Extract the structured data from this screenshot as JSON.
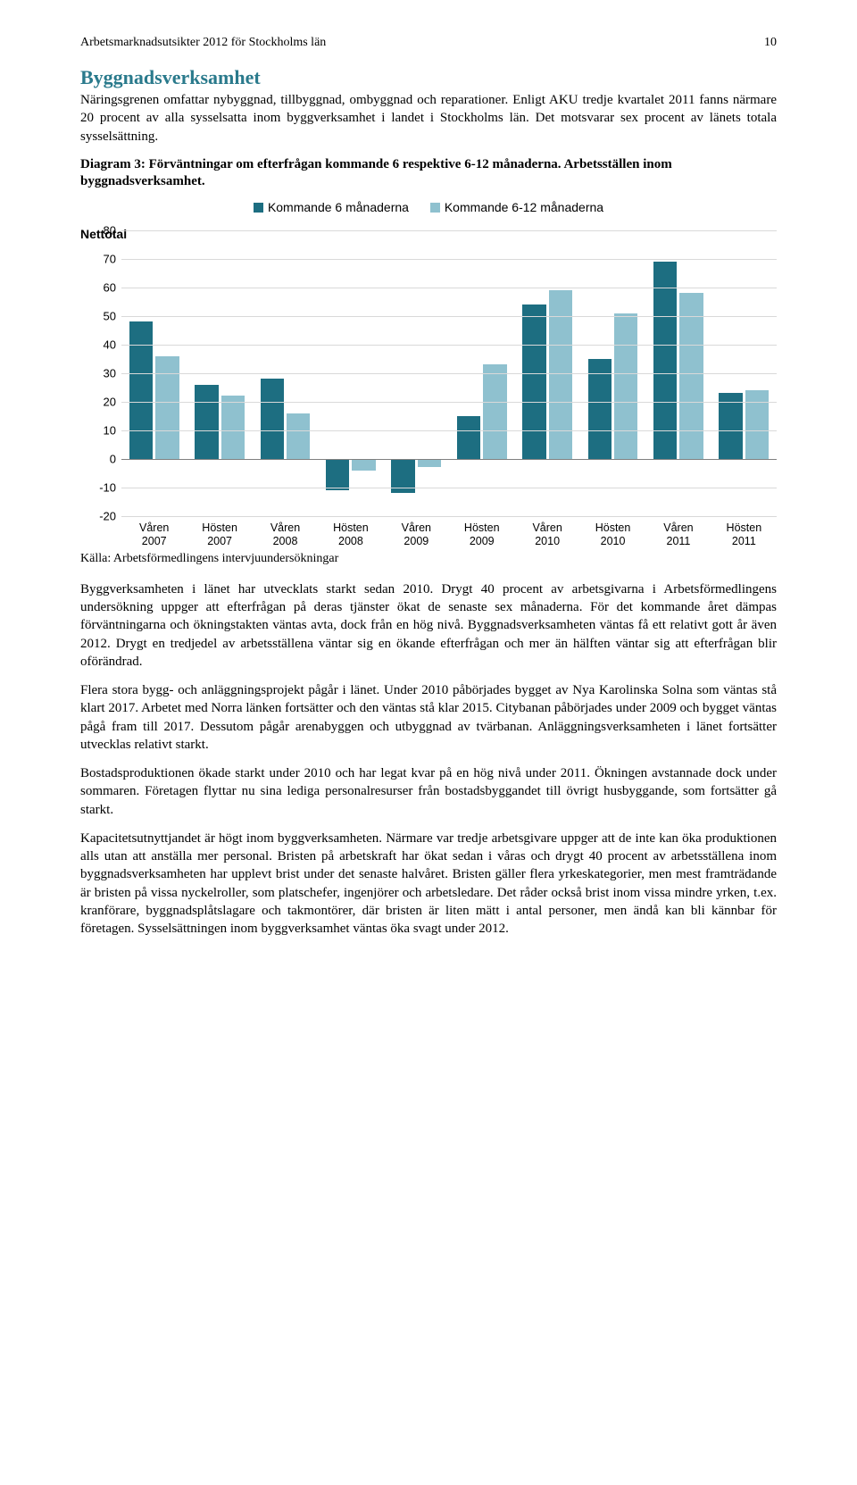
{
  "header": {
    "title": "Arbetsmarknadsutsikter 2012 för Stockholms län",
    "page_number": "10"
  },
  "section_heading": "Byggnadsverksamhet",
  "intro_paragraph": "Näringsgrenen omfattar nybyggnad, tillbyggnad, ombyggnad och reparationer. Enligt AKU tredje kvartalet 2011 fanns närmare 20 procent av alla sysselsatta inom byggverksamhet i landet i Stockholms län. Det motsvarar sex procent av länets totala sysselsättning.",
  "diagram_caption": "Diagram 3: Förväntningar om efterfrågan kommande 6 respektive 6-12 månaderna. Arbetsställen inom byggnadsverksamhet.",
  "chart": {
    "type": "bar",
    "y_axis_title": "Nettotal",
    "ylim": [
      -20,
      80
    ],
    "ytick_step": 10,
    "grid_color": "#d9d9d9",
    "zero_line_color": "#808080",
    "background_color": "#ffffff",
    "series": [
      {
        "label": "Kommande 6 månaderna",
        "color": "#1d6e81"
      },
      {
        "label": "Kommande 6-12 månaderna",
        "color": "#8fc1cf"
      }
    ],
    "categories": [
      "Våren 2007",
      "Hösten 2007",
      "Våren 2008",
      "Hösten 2008",
      "Våren 2009",
      "Hösten 2009",
      "Våren 2010",
      "Hösten 2010",
      "Våren 2011",
      "Hösten 2011"
    ],
    "values_a": [
      48,
      26,
      28,
      -11,
      -12,
      15,
      54,
      35,
      69,
      23
    ],
    "values_b": [
      36,
      22,
      16,
      -4,
      -3,
      33,
      59,
      51,
      58,
      24
    ],
    "label_fontsize": 13,
    "font_family": "Arial"
  },
  "source_line": "Källa: Arbetsförmedlingens intervjuundersökningar",
  "paragraphs": [
    "Byggverksamheten i länet har utvecklats starkt sedan 2010. Drygt 40 procent av arbetsgivarna i Arbetsförmedlingens undersökning uppger att efterfrågan på deras tjänster ökat de senaste sex månaderna. För det kommande året dämpas förväntningarna och ökningstakten väntas avta, dock från en hög nivå. Byggnadsverksamheten väntas få ett relativt gott år även 2012. Drygt en tredjedel av arbetsställena väntar sig en ökande efterfrågan och mer än hälften väntar sig att efterfrågan blir oförändrad.",
    "Flera stora bygg- och anläggningsprojekt pågår i länet. Under 2010 påbörjades bygget av Nya Karolinska Solna som väntas stå klart 2017. Arbetet med Norra länken fortsätter och den väntas stå klar 2015. Citybanan påbörjades under 2009 och bygget väntas pågå fram till 2017. Dessutom pågår arenabyggen och utbyggnad av tvärbanan. Anläggningsverksamheten i länet fortsätter utvecklas relativt starkt.",
    "Bostadsproduktionen ökade starkt under 2010 och har legat kvar på en hög nivå under 2011. Ökningen avstannade dock under sommaren. Företagen flyttar nu sina lediga personalresurser från bostadsbyggandet till övrigt husbyggande, som fortsätter gå starkt.",
    "Kapacitetsutnyttjandet är högt inom byggverksamheten. Närmare var tredje arbetsgivare uppger att de inte kan öka produktionen alls utan att anställa mer personal. Bristen på arbetskraft har ökat sedan i våras och drygt 40 procent av arbetsställena inom byggnadsverksamheten har upplevt brist under det senaste halvåret. Bristen gäller flera yrkeskategorier, men mest framträdande är bristen på vissa nyckelroller, som platschefer, ingenjörer och arbetsledare. Det råder också brist inom vissa mindre yrken, t.ex. kranförare, byggnadsplåtslagare och takmontörer, där bristen är liten mätt i antal personer, men ändå kan bli kännbar för företagen. Sysselsättningen inom byggverksamhet väntas öka svagt under 2012."
  ],
  "colors": {
    "heading_color": "#2a7a8c",
    "body_text": "#000000"
  }
}
